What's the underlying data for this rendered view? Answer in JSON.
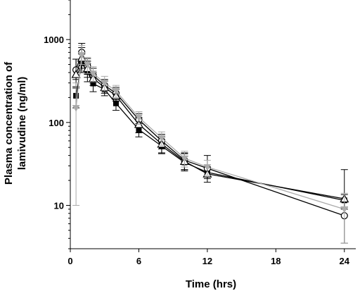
{
  "chart_data": {
    "type": "line",
    "title": "",
    "xlabel": "Time (hrs)",
    "ylabel_lines": [
      "Plasma concentration of",
      "lamivudine (ng/ml)"
    ],
    "x_scale": "linear",
    "y_scale": "log",
    "xlim": [
      0,
      25
    ],
    "ylim": [
      3,
      3000
    ],
    "x_ticks": [
      0,
      6,
      12,
      18,
      24
    ],
    "x_tick_labels": [
      "0",
      "6",
      "12",
      "18",
      "24"
    ],
    "y_ticks": [
      10,
      100,
      1000
    ],
    "y_tick_labels": [
      "10",
      "100",
      "1000"
    ],
    "grid": false,
    "legend": "none",
    "series": [
      {
        "marker": "filled-square",
        "color": "#000000",
        "x": [
          0.5,
          1,
          1.5,
          2,
          3,
          4,
          6,
          8,
          10,
          12,
          24
        ],
        "y": [
          210,
          520,
          410,
          295,
          250,
          170,
          82,
          52,
          33,
          25,
          11.5
        ],
        "err_low": [
          60,
          120,
          100,
          60,
          40,
          30,
          15,
          10,
          6,
          4,
          2
        ],
        "err_high": [
          60,
          150,
          100,
          60,
          40,
          30,
          15,
          10,
          6,
          4,
          2
        ]
      },
      {
        "marker": "open-circle",
        "color": "#000000",
        "x": [
          0.5,
          1,
          1.5,
          2,
          3,
          4,
          6,
          8,
          10,
          12,
          24
        ],
        "y": [
          430,
          700,
          480,
          370,
          280,
          225,
          108,
          60,
          35,
          28,
          7.5
        ],
        "err_low": [
          100,
          150,
          100,
          70,
          40,
          35,
          20,
          12,
          8,
          6,
          4
        ],
        "err_high": [
          150,
          200,
          110,
          80,
          50,
          40,
          20,
          12,
          8,
          12,
          4
        ]
      },
      {
        "marker": "open-triangle",
        "color": "#000000",
        "x": [
          0.5,
          1,
          1.5,
          2,
          3,
          4,
          6,
          8,
          10,
          12,
          24
        ],
        "y": [
          380,
          600,
          450,
          340,
          265,
          210,
          95,
          55,
          34,
          24,
          12
        ],
        "err_low": [
          120,
          150,
          100,
          60,
          40,
          30,
          20,
          12,
          8,
          5,
          3
        ],
        "err_high": [
          200,
          200,
          100,
          60,
          50,
          40,
          20,
          12,
          8,
          5,
          15
        ]
      },
      {
        "marker": "grey-inverted-triangle",
        "color": "#aaaaaa",
        "x": [
          0.5,
          1,
          1.5,
          2,
          3,
          4,
          6,
          8,
          10,
          12,
          24
        ],
        "y": [
          150,
          650,
          500,
          390,
          300,
          240,
          115,
          65,
          37,
          29,
          9
        ],
        "err_low": [
          140,
          150,
          110,
          80,
          60,
          40,
          20,
          12,
          8,
          6,
          5.5
        ],
        "err_high": [
          150,
          200,
          110,
          80,
          60,
          40,
          20,
          12,
          8,
          6,
          5
        ]
      }
    ]
  }
}
